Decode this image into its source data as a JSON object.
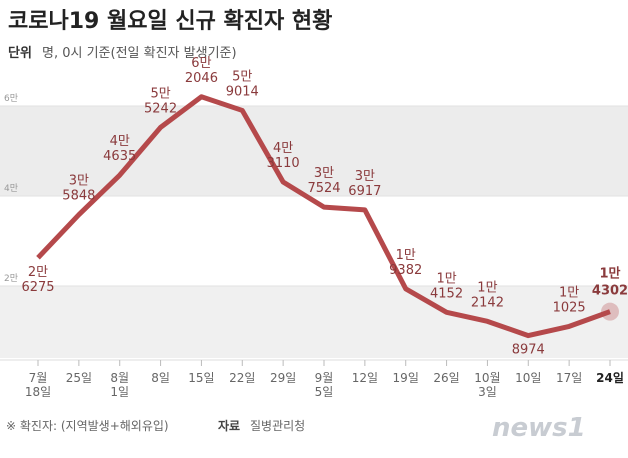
{
  "header": {
    "title": "코로나19 월요일 신규 확진자 현황",
    "unit_label": "단위",
    "unit_text": "명, 0시 기준(전일 확진자 발생기준)"
  },
  "chart_data": {
    "type": "line",
    "categories": [
      "7월\n18일",
      "25일",
      "8월\n1일",
      "8일",
      "15일",
      "22일",
      "29일",
      "9월\n5일",
      "12일",
      "19일",
      "26일",
      "10월\n3일",
      "10일",
      "17일",
      "24일"
    ],
    "series": [
      {
        "name": "신규 확진자",
        "color": "#b5494b",
        "values": [
          26275,
          35848,
          44635,
          55242,
          62046,
          59014,
          43110,
          37524,
          36917,
          19382,
          14152,
          12142,
          8974,
          11025,
          14302
        ],
        "value_labels": [
          [
            "2만",
            "6275"
          ],
          [
            "3만",
            "5848"
          ],
          [
            "4만",
            "4635"
          ],
          [
            "5만",
            "5242"
          ],
          [
            "6만",
            "2046"
          ],
          [
            "5만",
            "9014"
          ],
          [
            "4만",
            "3110"
          ],
          [
            "3만",
            "7524"
          ],
          [
            "3만",
            "6917"
          ],
          [
            "1만",
            "9382"
          ],
          [
            "1만",
            "4152"
          ],
          [
            "1만",
            "2142"
          ],
          [
            "8974"
          ],
          [
            "1만",
            "1025"
          ],
          [
            "1만",
            "4302"
          ]
        ]
      }
    ],
    "ylim": [
      4000,
      66000
    ],
    "yticks": [
      {
        "value": 20000,
        "label": "2만"
      },
      {
        "value": 40000,
        "label": "4만"
      },
      {
        "value": 60000,
        "label": "6만"
      }
    ]
  },
  "footer": {
    "note": "※ 확진자: (지역발생+해외유입)",
    "source_label": "자료",
    "source": "질병관리청",
    "logo": "news1"
  }
}
